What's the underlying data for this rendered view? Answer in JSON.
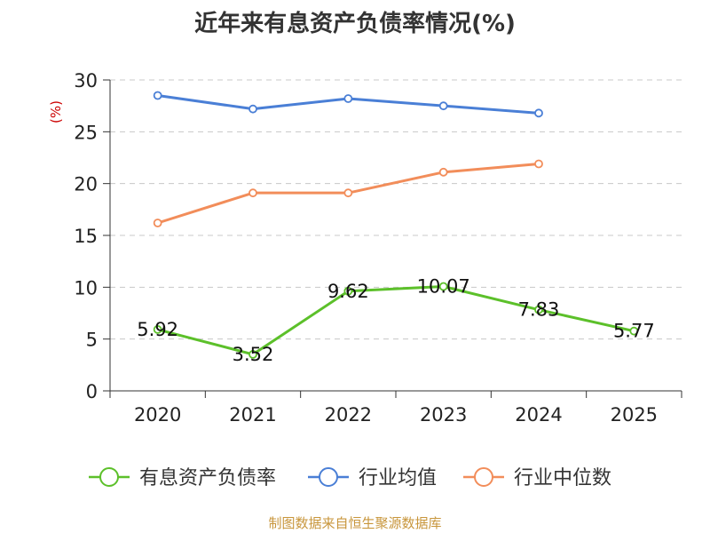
{
  "title": "近年来有息资产负债率情况(%)",
  "footer": "制图数据来自恒生聚源数据库",
  "chart_data": {
    "type": "line",
    "title": "近年来有息资产负债率情况(%)",
    "ylabel": "(%)",
    "xlabel": "",
    "categories": [
      "2020",
      "2021",
      "2022",
      "2023",
      "2024",
      "2025"
    ],
    "ylim": [
      0,
      30
    ],
    "yticks": [
      0,
      5,
      10,
      15,
      20,
      25,
      30
    ],
    "grid": true,
    "legend_position": "bottom",
    "series": [
      {
        "name": "有息资产负债率",
        "color": "#5cc02a",
        "values": [
          5.92,
          3.52,
          9.62,
          10.07,
          7.83,
          5.77
        ],
        "labels": [
          "5.92",
          "3.52",
          "9.62",
          "10.07",
          "7.83",
          "5.77"
        ]
      },
      {
        "name": "行业均值",
        "color": "#4a7fd6",
        "values": [
          28.5,
          27.2,
          28.2,
          27.5,
          26.8,
          null
        ]
      },
      {
        "name": "行业中位数",
        "color": "#f28d5a",
        "values": [
          16.2,
          19.1,
          19.1,
          21.1,
          21.9,
          null
        ]
      }
    ]
  }
}
